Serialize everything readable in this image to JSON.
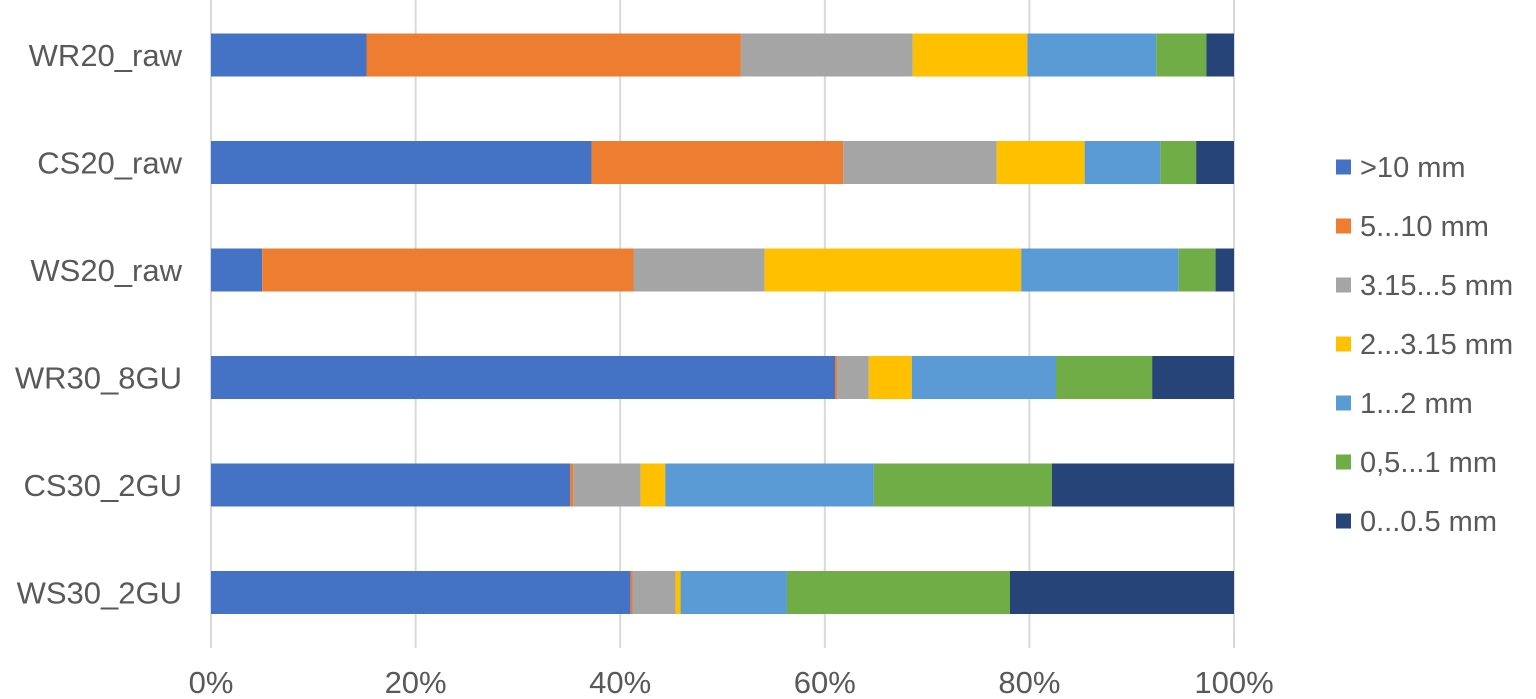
{
  "chart_data": {
    "type": "bar",
    "orientation": "horizontal",
    "stacked": "percent",
    "title": "",
    "xlabel": "",
    "ylabel": "",
    "xlim": [
      0,
      100
    ],
    "x_ticks": [
      "0%",
      "20%",
      "40%",
      "60%",
      "80%",
      "100%"
    ],
    "grid": true,
    "legend_position": "right",
    "categories": [
      "WR20_raw",
      "CS20_raw",
      "WS20_raw",
      "WR30_8GU",
      "CS30_2GU",
      "WS30_2GU"
    ],
    "series": [
      {
        "name": ">10 mm",
        "color": "#4472C4",
        "values": [
          15.2,
          37.2,
          5.0,
          61.0,
          35.1,
          41.0
        ]
      },
      {
        "name": "5...10 mm",
        "color": "#ED7D31",
        "values": [
          36.6,
          24.6,
          36.3,
          0.2,
          0.3,
          0.2
        ]
      },
      {
        "name": "3.15...5 mm",
        "color": "#A5A5A5",
        "values": [
          16.8,
          15.0,
          12.8,
          3.1,
          6.6,
          4.2
        ]
      },
      {
        "name": "2...3.15 mm",
        "color": "#FFC000",
        "values": [
          11.2,
          8.6,
          25.1,
          4.2,
          2.4,
          0.5
        ]
      },
      {
        "name": "1...2 mm",
        "color": "#5B9BD5",
        "values": [
          12.6,
          7.4,
          15.4,
          14.1,
          20.4,
          10.4
        ]
      },
      {
        "name": "0,5...1 mm",
        "color": "#70AD47",
        "values": [
          4.9,
          3.5,
          3.6,
          9.4,
          17.4,
          21.8
        ]
      },
      {
        "name": "0...0.5 mm",
        "color": "#264478",
        "values": [
          2.7,
          3.7,
          1.8,
          8.0,
          17.8,
          21.9
        ]
      }
    ]
  }
}
